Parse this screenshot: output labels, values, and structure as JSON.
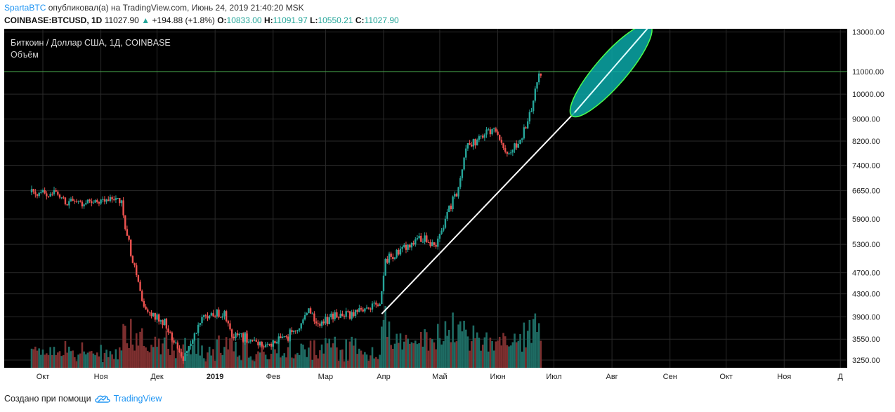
{
  "header": {
    "author": "SpartaBTC",
    "published_text": "опубликовал(а) на TradingView.com, Июнь 24, 2019 21:40:20 MSK",
    "symbol": "COINBASE:BTCUSD, 1D",
    "last": "11027.90",
    "change_arrow": "▲",
    "change": "+194.88 (+1.8%)",
    "open_label": "O:",
    "open": "10833.00",
    "high_label": "H:",
    "high": "11091.97",
    "low_label": "L:",
    "low": "10550.21",
    "close_label": "C:",
    "close": "11027.90"
  },
  "legend": {
    "title": "Биткоин / Доллар США, 1Д, COINBASE",
    "volume_label": "Объём"
  },
  "footer": {
    "text": "Создано при помощи",
    "brand": "TradingView",
    "logo_icon": "tradingview-cloud-icon"
  },
  "colors": {
    "background": "#000000",
    "up": "#26a69a",
    "down": "#ef5350",
    "grid": "#2a2a2a",
    "price_line": "#4caf50",
    "ellipse_fill": "#0aa8a8",
    "ellipse_stroke": "#4cff4c",
    "trend_line": "#ffffff"
  },
  "chart_data": {
    "type": "candlestick",
    "title": "Биткоин / Доллар США, 1Д, COINBASE",
    "y_scale": "log",
    "ylim": [
      3150,
      13600
    ],
    "y_ticks": [
      "3250.00",
      "3550.00",
      "3900.00",
      "4300.00",
      "4700.00",
      "5300.00",
      "5900.00",
      "6650.00",
      "7400.00",
      "8200.00",
      "9000.00",
      "10000.00",
      "11000.00",
      "13000.00"
    ],
    "x_ticks": [
      "Окт",
      "Ноя",
      "Дек",
      "2019",
      "Фев",
      "Мар",
      "Апр",
      "Май",
      "Июн",
      "Июл",
      "Авг",
      "Сен",
      "Окт",
      "Ноя",
      "Д"
    ],
    "price_line": 11000,
    "waypoints": [
      {
        "x": "Сен 25 2018",
        "price": 6600
      },
      {
        "x": "Окт 10 2018",
        "price": 6600
      },
      {
        "x": "Окт 14 2018",
        "price": 6350
      },
      {
        "x": "Ноя 12 2018",
        "price": 6400
      },
      {
        "x": "Ноя 14 2018",
        "price": 5700
      },
      {
        "x": "Ноя 20 2018",
        "price": 4600
      },
      {
        "x": "Ноя 25 2018",
        "price": 4000
      },
      {
        "x": "Дек 5 2018",
        "price": 3800
      },
      {
        "x": "Дек 15 2018",
        "price": 3250
      },
      {
        "x": "Дек 25 2018",
        "price": 3900
      },
      {
        "x": "Янв 6 2019",
        "price": 3950
      },
      {
        "x": "Янв 10 2019",
        "price": 3650
      },
      {
        "x": "Янв 28 2019",
        "price": 3450
      },
      {
        "x": "Фев 8 2019",
        "price": 3550
      },
      {
        "x": "Фев 20 2019",
        "price": 3950
      },
      {
        "x": "Фев 24 2019",
        "price": 3800
      },
      {
        "x": "Мар 30 2019",
        "price": 4100
      },
      {
        "x": "Апр 2 2019",
        "price": 4950
      },
      {
        "x": "Апр 23 2019",
        "price": 5500
      },
      {
        "x": "Апр 28 2019",
        "price": 5200
      },
      {
        "x": "Май 12 2019",
        "price": 6900
      },
      {
        "x": "Май 15 2019",
        "price": 8000
      },
      {
        "x": "Май 29 2019",
        "price": 8700
      },
      {
        "x": "Июн 6 2019",
        "price": 7700
      },
      {
        "x": "Июн 13 2019",
        "price": 8200
      },
      {
        "x": "Июн 18 2019",
        "price": 9100
      },
      {
        "x": "Июн 21 2019",
        "price": 10200
      },
      {
        "x": "Июн 24 2019",
        "price": 11027.9
      }
    ],
    "trend_line": {
      "from": {
        "x": "Мар 31 2019",
        "price": 3950
      },
      "to": {
        "x": "Июл 12 2019",
        "price": 9250
      }
    },
    "projection_ellipse": {
      "from": {
        "x": "Июл 12 2019",
        "price": 9250
      },
      "to": {
        "x": "Авг 20 2019",
        "price": 13200
      }
    }
  }
}
